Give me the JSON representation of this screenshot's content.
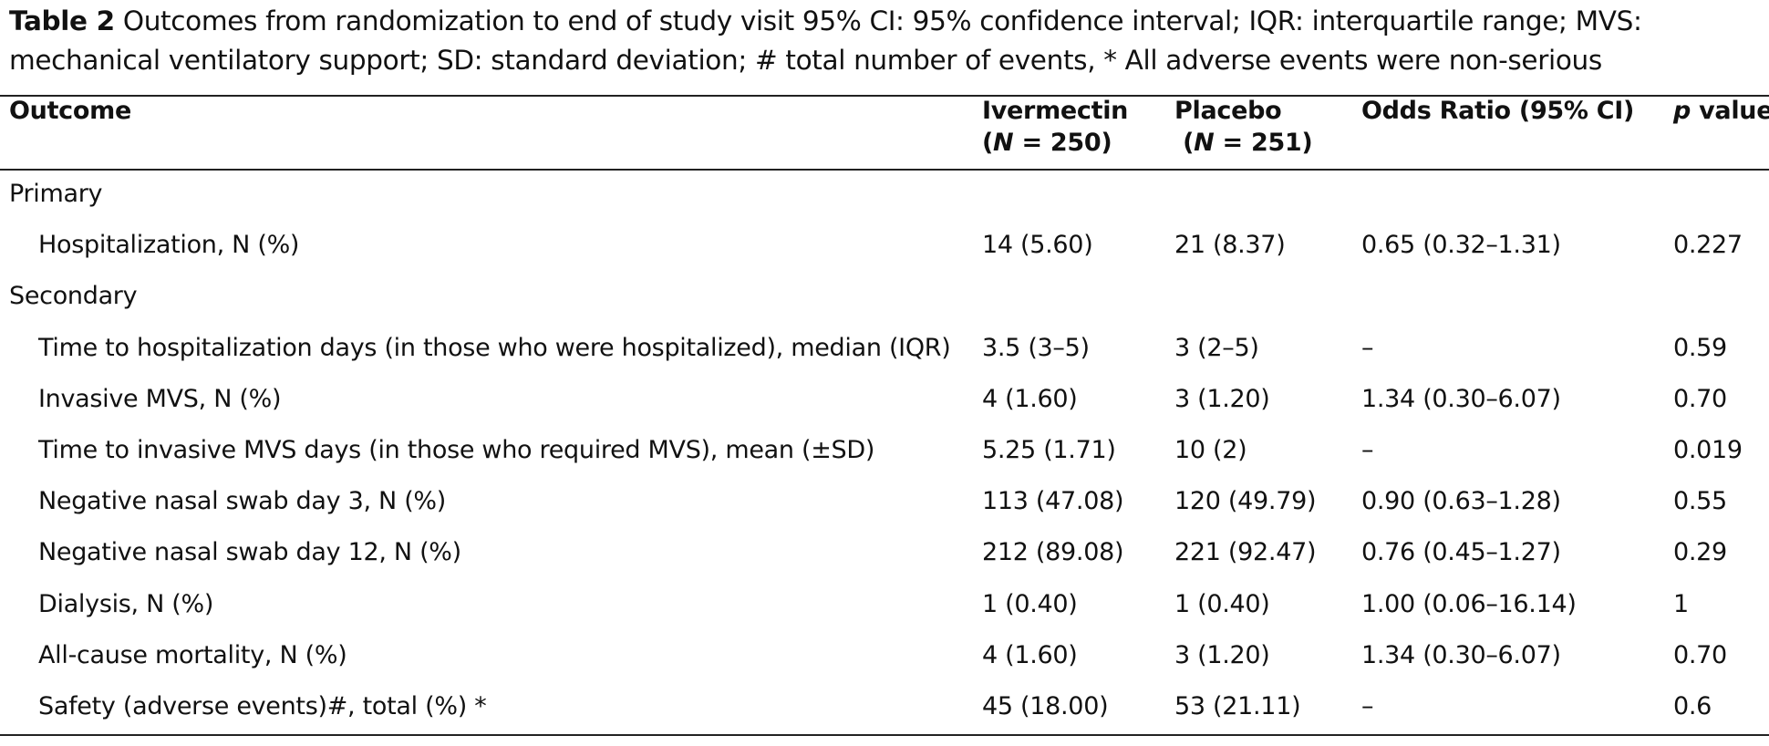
{
  "caption": {
    "label": "Table 2",
    "text": " Outcomes from randomization to end of study visit 95% CI: 95% confidence interval; IQR: interquartile range; MVS: mechanical ventilatory support; SD: standard deviation; # total number of events, * All adverse events were non-serious"
  },
  "headers": {
    "outcome": "Outcome",
    "ivermectin": "Ivermectin",
    "ivermectin_n_prefix": "(",
    "ivermectin_n_var": "N",
    "ivermectin_n_suffix": " = 250)",
    "placebo": "Placebo",
    "placebo_n_prefix": " (",
    "placebo_n_var": "N",
    "placebo_n_suffix": " = 251)",
    "odds_ratio": "Odds Ratio (95% CI)",
    "p_var": "p",
    "p_suffix": " value"
  },
  "rows": [
    {
      "type": "section",
      "outcome": "Primary",
      "ivermectin": "",
      "placebo": "",
      "odds_ratio": "",
      "p": ""
    },
    {
      "type": "sub",
      "outcome": "Hospitalization, N (%)",
      "ivermectin": "14 (5.60)",
      "placebo": "21 (8.37)",
      "odds_ratio": "0.65 (0.32–1.31)",
      "p": "0.227"
    },
    {
      "type": "section",
      "outcome": "Secondary",
      "ivermectin": "",
      "placebo": "",
      "odds_ratio": "",
      "p": ""
    },
    {
      "type": "sub",
      "outcome": "Time to hospitalization days (in those who were hospitalized), median (IQR)",
      "ivermectin": "3.5 (3–5)",
      "placebo": "3 (2–5)",
      "odds_ratio": "–",
      "p": "0.59"
    },
    {
      "type": "sub",
      "outcome": "Invasive MVS, N (%)",
      "ivermectin": "4 (1.60)",
      "placebo": "3 (1.20)",
      "odds_ratio": "1.34 (0.30–6.07)",
      "p": "0.70"
    },
    {
      "type": "sub",
      "outcome": "Time to invasive MVS days (in those who required MVS), mean (±SD)",
      "ivermectin": "5.25 (1.71)",
      "placebo": "10 (2)",
      "odds_ratio": "–",
      "p": "0.019"
    },
    {
      "type": "sub",
      "outcome": "Negative nasal swab day 3, N (%)",
      "ivermectin": "113 (47.08)",
      "placebo": "120 (49.79)",
      "odds_ratio": "0.90 (0.63–1.28)",
      "p": "0.55"
    },
    {
      "type": "sub",
      "outcome": "Negative nasal swab day 12, N (%)",
      "ivermectin": "212 (89.08)",
      "placebo": "221 (92.47)",
      "odds_ratio": "0.76 (0.45–1.27)",
      "p": "0.29"
    },
    {
      "type": "sub",
      "outcome": "Dialysis, N (%)",
      "ivermectin": "1 (0.40)",
      "placebo": "1 (0.40)",
      "odds_ratio": "1.00 (0.06–16.14)",
      "p": "1"
    },
    {
      "type": "sub",
      "outcome": "All-cause mortality, N (%)",
      "ivermectin": "4 (1.60)",
      "placebo": "3 (1.20)",
      "odds_ratio": "1.34 (0.30–6.07)",
      "p": "0.70"
    },
    {
      "type": "sub",
      "outcome": "Safety (adverse events)#, total (%) *",
      "ivermectin": "45 (18.00)",
      "placebo": "53 (21.11)",
      "odds_ratio": "–",
      "p": "0.6"
    }
  ]
}
